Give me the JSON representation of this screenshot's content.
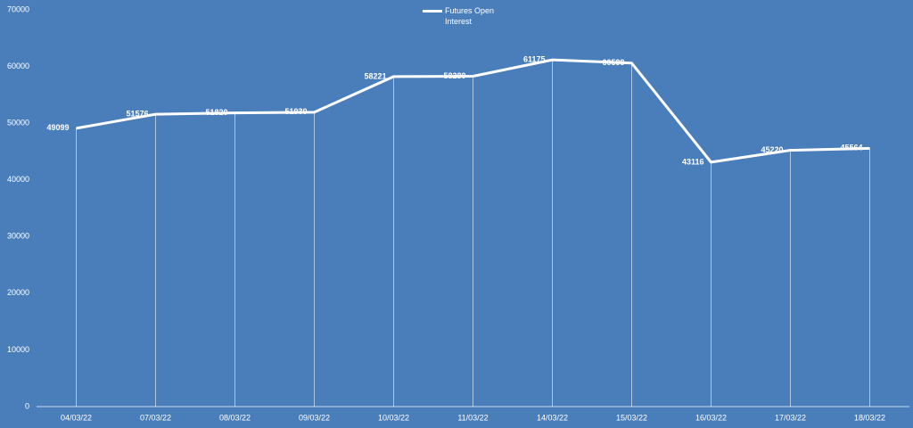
{
  "chart_data": {
    "type": "line",
    "categories": [
      "04/03/22",
      "07/03/22",
      "08/03/22",
      "09/03/22",
      "10/03/22",
      "11/03/22",
      "14/03/22",
      "15/03/22",
      "16/03/22",
      "17/03/22",
      "18/03/22"
    ],
    "series": [
      {
        "name": "Futures Open Interest",
        "color": "#ffffff",
        "values": [
          49099,
          51576,
          51820,
          51930,
          58221,
          58280,
          61175,
          60599,
          43116,
          45220,
          45564
        ]
      }
    ],
    "ylim": [
      0,
      70000
    ],
    "yticks": [
      0,
      10000,
      20000,
      30000,
      40000,
      50000,
      60000,
      70000
    ],
    "drop_lines": true,
    "data_labels": true
  }
}
